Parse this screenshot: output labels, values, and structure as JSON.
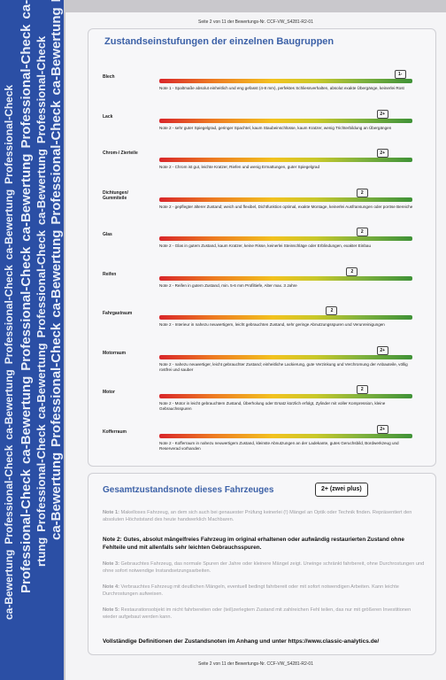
{
  "strip": {
    "rows": [
      [
        "ca-Bewertung",
        "Professional-Check",
        "ca-Bewertung",
        "Professional-Check",
        "ca-Bewertung",
        "Professional-Check"
      ],
      [
        "Professional-Check",
        "ca-Bewertung",
        "Professional-Check",
        "ca-Bewertung",
        "Professional-Check",
        "ca-Bewertung"
      ],
      [
        "rtung",
        "Professional-Check",
        "ca-Bewertung",
        "Professional-Check",
        "ca-Bewertung",
        "Professional-Check"
      ],
      [
        "ca-Bewertung",
        "Professional-Check",
        "ca-Bewertung",
        "Professional-Check",
        "ca-Bewertung",
        "Professional-Check"
      ]
    ]
  },
  "header": "Seite 2 von 11 der Bewertungs-Nr. CCF-VW_S4281-R2-01",
  "footer": "Seite 2 von 11 der Bewertungs-Nr. CCF-VW_S4281-R2-01",
  "section1": {
    "title": "Zustandseinstufungen der einzelnen Baugruppen",
    "rows": [
      {
        "label": "Blech",
        "grade": "1-",
        "grade_level": 0.95,
        "note": "Note 1 - Spaltmaße absolut einheitlich und eng gefasst (4-8 mm), perfektes Schliessverhalten, absolut exakte Übergänge, keinerlei Rost"
      },
      {
        "label": "Lack",
        "grade": "2+",
        "grade_level": 0.88,
        "note": "Note 2 - sehr guter Spiegelgrad, geringer Spachtel, kaum Staubeinschlüsse, kaum Kratzer, wenig Trichterbildung an Übergängen"
      },
      {
        "label": "Chrom-/ Zierteile",
        "grade": "2+",
        "grade_level": 0.88,
        "note": "Note 2 - Chrom ist gut, leichte Kratzer, Riefen und wenig Ermattungen, guter Spiegelgrad"
      },
      {
        "label": "Dichtungen/ Gummiteile",
        "grade": "2",
        "grade_level": 0.8,
        "note": "Note 2 - gepflegter älterer Zustand; weich und flexibel, Dichtfunktion optimal, exakte Montage, keinerlei Ausfransungen oder poröse Bereiche"
      },
      {
        "label": "Glas",
        "grade": "2",
        "grade_level": 0.8,
        "note": "Note 2 - Glas in gutem Zustand, kaum Kratzer, keine Risse, keinerlei Steinschläge oder Erblindungen, exakter Einbau"
      },
      {
        "label": "Reifen",
        "grade": "2",
        "grade_level": 0.76,
        "note": "Note 2 - Reifen in gutem Zustand, min. 5-6 mm Profiltiefe, Alter max. 3 Jahre"
      },
      {
        "label": "Fahrgastraum",
        "grade": "2",
        "grade_level": 0.68,
        "note": "Note 2 - Interieur in nahezu neuwertigem, leicht gebrauchten Zustand, sehr geringe Abnutzungsspuren und Verunreinigungen"
      },
      {
        "label": "Motorraum",
        "grade": "2+",
        "grade_level": 0.88,
        "note": "Note 2 - nahezu neuwertiger, leicht gebrauchter Zustand; einheitliche Lackierung, gute Verzinkung und Verchromung der Anbauteile, völlig rostfrei und sauber"
      },
      {
        "label": "Motor",
        "grade": "2",
        "grade_level": 0.8,
        "note": "Note 2 - Motor in leicht gebrauchtem Zustand, Überholung oder Ersatz kürzlich erfolgt, Zylinder mit voller Kompression, kleine Gebrauchsspuren"
      },
      {
        "label": "Kofferraum",
        "grade": "2+",
        "grade_level": 0.88,
        "note": "Note 2 - Kofferraum in nahezu neuwertigem Zustand, kleinste Abnutzungen an der Ladekante, gutes Geruchsbild, Bordwerkzeug und Reserverad vorhanden"
      }
    ]
  },
  "section2": {
    "title": "Gesamtzustandsnote dieses Fahrzeuges",
    "overall": "2+ (zwei plus)",
    "notes": [
      {
        "head": "Note 1:",
        "text": "Makelloses Fahrzeug, an dem sich auch bei genauester Prüfung keinerlei (!) Mängel an Optik oder Technik finden. Repräsentiert den absoluten Höchststand des heute handwerklich Machbaren.",
        "selected": false
      },
      {
        "head": "Note 2:",
        "text": "Gutes, absolut mängelfreies Fahrzeug im original erhaltenen oder aufwändig restaurierten Zustand ohne Fehlteile und mit allenfalls sehr leichten Gebrauchsspuren.",
        "selected": true
      },
      {
        "head": "Note 3:",
        "text": "Gebrauchtes Fahrzeug, das normale Spuren der Jahre oder kleinere Mängel zeigt. Uneinge schränkt fahrbereit, ohne Durchrostungen und ohne sofort notwendige Instandsetzungsarbeiten.",
        "selected": false
      },
      {
        "head": "Note 4:",
        "text": "Verbrauchtes Fahrzeug mit deutlichen Mängeln, eventuell bedingt fahrbereit oder mit sofort notwendigen Arbeiten. Kann leichte Durchrostungen aufweisen.",
        "selected": false
      },
      {
        "head": "Note 5:",
        "text": "Restaurationsobjekt im nicht fahrbereiten oder (teil)zerlegtem Zustand mit zahlreichen Fehl teilen, das nur mit größeren Investitionen wieder aufgebaut werden kann.",
        "selected": false
      }
    ],
    "definitions": "Vollständige Definitionen der Zustandsnoten im Anhang und unter https://www.classic-analytics.de/"
  }
}
